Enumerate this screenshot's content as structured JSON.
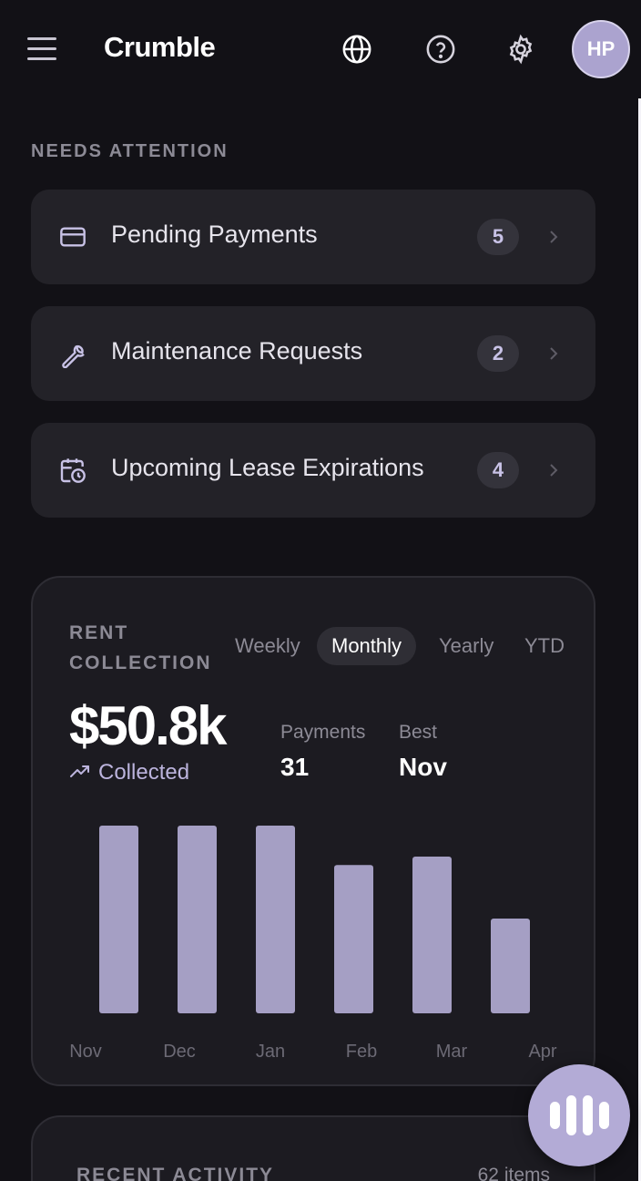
{
  "header": {
    "app_title": "Crumble",
    "avatar_initials": "HP",
    "icons": [
      "menu-icon",
      "globe-icon",
      "help-icon",
      "gear-icon"
    ]
  },
  "needs_attention": {
    "label": "NEEDS ATTENTION",
    "items": [
      {
        "label": "Pending Payments",
        "count": "5",
        "icon": "credit-card-icon"
      },
      {
        "label": "Maintenance Requests",
        "count": "2",
        "icon": "wrench-icon"
      },
      {
        "label": "Upcoming Lease Expirations",
        "count": "4",
        "icon": "calendar-clock-icon"
      }
    ]
  },
  "rent_collection": {
    "title": "RENT COLLECTION",
    "tabs": [
      "Weekly",
      "Monthly",
      "Yearly",
      "YTD"
    ],
    "active_tab": "Monthly",
    "value": "$50.8k",
    "value_caption": "Collected",
    "stats": [
      {
        "label": "Payments",
        "value": "31"
      },
      {
        "label": "Best",
        "value": "Nov"
      }
    ],
    "accent_color": "#a59fc4"
  },
  "chart_data": {
    "type": "bar",
    "categories": [
      "Nov",
      "Dec",
      "Jan",
      "Feb",
      "Mar",
      "Apr"
    ],
    "values": [
      100,
      100,
      100,
      79,
      83.5,
      50.5
    ],
    "title": "RENT COLLECTION",
    "xlabel": "",
    "ylabel": "",
    "ylim": [
      0,
      100
    ],
    "grid": false
  },
  "recent_activity": {
    "title": "RECENT ACTIVITY",
    "count": "62 items"
  },
  "fab": {
    "icon": "voice-waveform-icon"
  }
}
